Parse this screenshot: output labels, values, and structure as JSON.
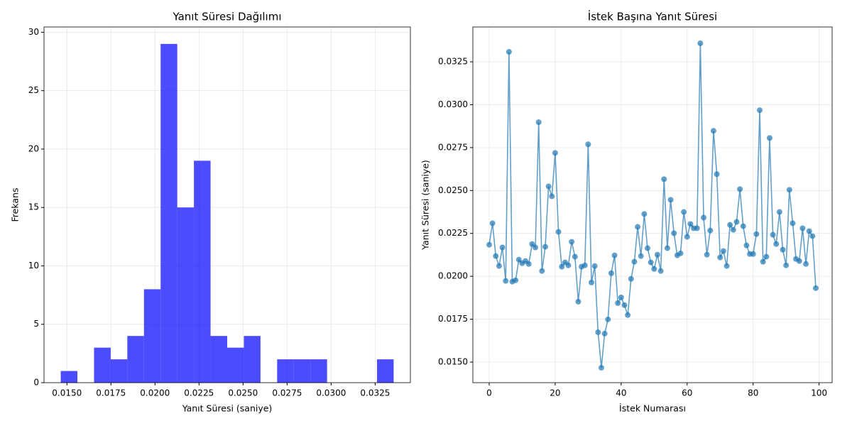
{
  "chart_data": [
    {
      "type": "histogram",
      "title": "Yanıt Süresi Dağılımı",
      "xlabel": "Yanıt Süresi (saniye)",
      "ylabel": "Frekans",
      "bins": [
        0.01465,
        0.015595,
        0.01654,
        0.017485,
        0.01843,
        0.019375,
        0.02032,
        0.021265,
        0.02221,
        0.023155,
        0.0241,
        0.025045,
        0.02599,
        0.026935,
        0.02788,
        0.028825,
        0.02977,
        0.030715,
        0.03166,
        0.032605,
        0.03355
      ],
      "counts": [
        1,
        0,
        3,
        2,
        4,
        8,
        29,
        15,
        19,
        4,
        3,
        4,
        0,
        2,
        2,
        2,
        0,
        0,
        0,
        2
      ],
      "color": "#0000ff",
      "grid": true,
      "xlim": [
        0.0137,
        0.0345
      ],
      "xticks": [
        {
          "value": 0.015,
          "label": "0.0150"
        },
        {
          "value": 0.0175,
          "label": "0.0175"
        },
        {
          "value": 0.02,
          "label": "0.0200"
        },
        {
          "value": 0.0225,
          "label": "0.0225"
        },
        {
          "value": 0.025,
          "label": "0.0250"
        },
        {
          "value": 0.0275,
          "label": "0.0275"
        },
        {
          "value": 0.03,
          "label": "0.0300"
        },
        {
          "value": 0.0325,
          "label": "0.0325"
        }
      ],
      "ylim": [
        0,
        30.45
      ],
      "yticks": [
        0,
        5,
        10,
        15,
        20,
        25,
        30
      ]
    },
    {
      "type": "line",
      "title": "İstek Başına Yanıt Süresi",
      "xlabel": "İstek Numarası",
      "ylabel": "Yanıt Süresi (saniye)",
      "color": "#1f77b4",
      "grid": true,
      "markers": true,
      "x": [
        0,
        1,
        2,
        3,
        4,
        5,
        6,
        7,
        8,
        9,
        10,
        11,
        12,
        13,
        14,
        15,
        16,
        17,
        18,
        19,
        20,
        21,
        22,
        23,
        24,
        25,
        26,
        27,
        28,
        29,
        30,
        31,
        32,
        33,
        34,
        35,
        36,
        37,
        38,
        39,
        40,
        41,
        42,
        43,
        44,
        45,
        46,
        47,
        48,
        49,
        50,
        51,
        52,
        53,
        54,
        55,
        56,
        57,
        58,
        59,
        60,
        61,
        62,
        63,
        64,
        65,
        66,
        67,
        68,
        69,
        70,
        71,
        72,
        73,
        74,
        75,
        76,
        77,
        78,
        79,
        80,
        81,
        82,
        83,
        84,
        85,
        86,
        87,
        88,
        89,
        90,
        91,
        92,
        93,
        94,
        95,
        96,
        97,
        98,
        99
      ],
      "values": [
        0.02184,
        0.02309,
        0.02118,
        0.0206,
        0.02168,
        0.01973,
        0.03308,
        0.01969,
        0.01977,
        0.02097,
        0.02076,
        0.02089,
        0.02072,
        0.02188,
        0.02168,
        0.02898,
        0.02031,
        0.02172,
        0.02524,
        0.02466,
        0.02719,
        0.02259,
        0.02056,
        0.02081,
        0.02064,
        0.02201,
        0.02114,
        0.01852,
        0.02056,
        0.02064,
        0.02769,
        0.01964,
        0.0206,
        0.01674,
        0.01467,
        0.01666,
        0.01749,
        0.02018,
        0.02122,
        0.01844,
        0.01877,
        0.01832,
        0.01774,
        0.01985,
        0.02085,
        0.02288,
        0.02118,
        0.02363,
        0.02164,
        0.02081,
        0.02043,
        0.02126,
        0.02031,
        0.02566,
        0.02164,
        0.02446,
        0.02251,
        0.02122,
        0.02134,
        0.02375,
        0.0223,
        0.02305,
        0.0228,
        0.0228,
        0.03358,
        0.02342,
        0.02126,
        0.02267,
        0.02848,
        0.02595,
        0.0211,
        0.02147,
        0.0206,
        0.023,
        0.02271,
        0.02317,
        0.02508,
        0.02292,
        0.0218,
        0.0213,
        0.0213,
        0.02246,
        0.02968,
        0.02085,
        0.02114,
        0.02806,
        0.02242,
        0.02188,
        0.02375,
        0.02155,
        0.02064,
        0.02504,
        0.02309,
        0.02101,
        0.02089,
        0.0228,
        0.02072,
        0.02263,
        0.02234,
        0.01931
      ],
      "xlim": [
        -4.95,
        103.95
      ],
      "xticks": [
        0,
        20,
        40,
        60,
        80,
        100
      ],
      "ylim": [
        0.0138,
        0.03453
      ],
      "yticks": [
        {
          "value": 0.015,
          "label": "0.0150"
        },
        {
          "value": 0.0175,
          "label": "0.0175"
        },
        {
          "value": 0.02,
          "label": "0.0200"
        },
        {
          "value": 0.0225,
          "label": "0.0225"
        },
        {
          "value": 0.025,
          "label": "0.0250"
        },
        {
          "value": 0.0275,
          "label": "0.0275"
        },
        {
          "value": 0.03,
          "label": "0.0300"
        },
        {
          "value": 0.0325,
          "label": "0.0325"
        }
      ]
    }
  ]
}
